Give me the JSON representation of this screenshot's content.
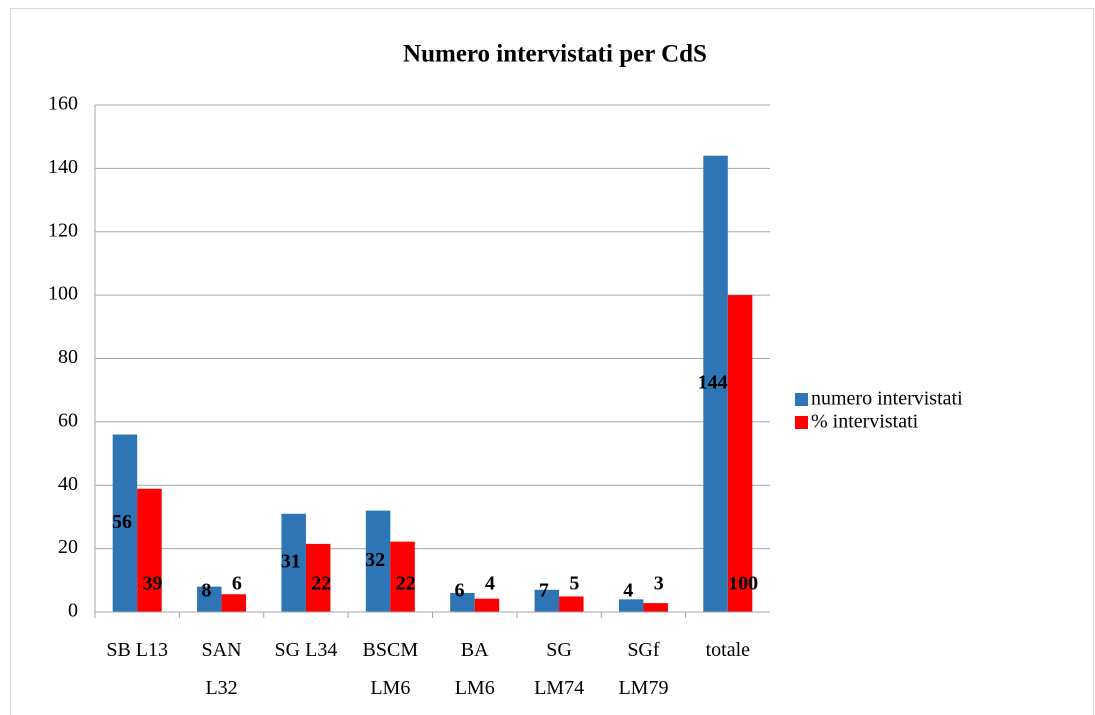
{
  "chart_data": {
    "type": "bar",
    "title": "Numero intervistati per CdS",
    "categories": [
      "SB L13",
      "SAN L32",
      "SG L34",
      "BSCM LM6",
      "BA LM6",
      "SG LM74",
      "SGf LM79",
      "totale"
    ],
    "series": [
      {
        "name": "numero intervistati",
        "color": "#2e75b6",
        "values": [
          56,
          8,
          31,
          32,
          6,
          7,
          4,
          144
        ]
      },
      {
        "name": "% intervistati",
        "color": "#ff0000",
        "values": [
          38.9,
          5.6,
          21.5,
          22.2,
          4.2,
          4.9,
          2.8,
          100
        ],
        "value_labels": [
          "39",
          "6",
          "22",
          "22",
          "4",
          "5",
          "3",
          "100"
        ]
      }
    ],
    "ylim": [
      0,
      160
    ],
    "yticks": [
      0,
      20,
      40,
      60,
      80,
      100,
      120,
      140,
      160
    ],
    "grid": true,
    "legend": "right"
  }
}
